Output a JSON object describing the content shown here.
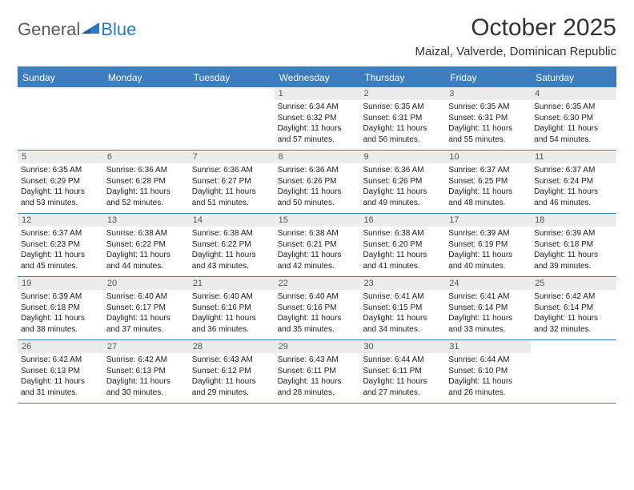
{
  "logo": {
    "general": "General",
    "blue": "Blue"
  },
  "title": "October 2025",
  "subtitle": "Maizal, Valverde, Dominican Republic",
  "colors": {
    "header_blue": "#3b7dbf",
    "day_num_bg": "#ececec",
    "text": "#222222",
    "title_text": "#333333",
    "logo_gray": "#5a5a5a",
    "logo_blue": "#2b78c2"
  },
  "dow": [
    "Sunday",
    "Monday",
    "Tuesday",
    "Wednesday",
    "Thursday",
    "Friday",
    "Saturday"
  ],
  "weeks": [
    [
      {
        "n": "",
        "sr": "",
        "ss": "",
        "dl": ""
      },
      {
        "n": "",
        "sr": "",
        "ss": "",
        "dl": ""
      },
      {
        "n": "",
        "sr": "",
        "ss": "",
        "dl": ""
      },
      {
        "n": "1",
        "sr": "Sunrise: 6:34 AM",
        "ss": "Sunset: 6:32 PM",
        "dl": "Daylight: 11 hours and 57 minutes."
      },
      {
        "n": "2",
        "sr": "Sunrise: 6:35 AM",
        "ss": "Sunset: 6:31 PM",
        "dl": "Daylight: 11 hours and 56 minutes."
      },
      {
        "n": "3",
        "sr": "Sunrise: 6:35 AM",
        "ss": "Sunset: 6:31 PM",
        "dl": "Daylight: 11 hours and 55 minutes."
      },
      {
        "n": "4",
        "sr": "Sunrise: 6:35 AM",
        "ss": "Sunset: 6:30 PM",
        "dl": "Daylight: 11 hours and 54 minutes."
      }
    ],
    [
      {
        "n": "5",
        "sr": "Sunrise: 6:35 AM",
        "ss": "Sunset: 6:29 PM",
        "dl": "Daylight: 11 hours and 53 minutes."
      },
      {
        "n": "6",
        "sr": "Sunrise: 6:36 AM",
        "ss": "Sunset: 6:28 PM",
        "dl": "Daylight: 11 hours and 52 minutes."
      },
      {
        "n": "7",
        "sr": "Sunrise: 6:36 AM",
        "ss": "Sunset: 6:27 PM",
        "dl": "Daylight: 11 hours and 51 minutes."
      },
      {
        "n": "8",
        "sr": "Sunrise: 6:36 AM",
        "ss": "Sunset: 6:26 PM",
        "dl": "Daylight: 11 hours and 50 minutes."
      },
      {
        "n": "9",
        "sr": "Sunrise: 6:36 AM",
        "ss": "Sunset: 6:26 PM",
        "dl": "Daylight: 11 hours and 49 minutes."
      },
      {
        "n": "10",
        "sr": "Sunrise: 6:37 AM",
        "ss": "Sunset: 6:25 PM",
        "dl": "Daylight: 11 hours and 48 minutes."
      },
      {
        "n": "11",
        "sr": "Sunrise: 6:37 AM",
        "ss": "Sunset: 6:24 PM",
        "dl": "Daylight: 11 hours and 46 minutes."
      }
    ],
    [
      {
        "n": "12",
        "sr": "Sunrise: 6:37 AM",
        "ss": "Sunset: 6:23 PM",
        "dl": "Daylight: 11 hours and 45 minutes."
      },
      {
        "n": "13",
        "sr": "Sunrise: 6:38 AM",
        "ss": "Sunset: 6:22 PM",
        "dl": "Daylight: 11 hours and 44 minutes."
      },
      {
        "n": "14",
        "sr": "Sunrise: 6:38 AM",
        "ss": "Sunset: 6:22 PM",
        "dl": "Daylight: 11 hours and 43 minutes."
      },
      {
        "n": "15",
        "sr": "Sunrise: 6:38 AM",
        "ss": "Sunset: 6:21 PM",
        "dl": "Daylight: 11 hours and 42 minutes."
      },
      {
        "n": "16",
        "sr": "Sunrise: 6:38 AM",
        "ss": "Sunset: 6:20 PM",
        "dl": "Daylight: 11 hours and 41 minutes."
      },
      {
        "n": "17",
        "sr": "Sunrise: 6:39 AM",
        "ss": "Sunset: 6:19 PM",
        "dl": "Daylight: 11 hours and 40 minutes."
      },
      {
        "n": "18",
        "sr": "Sunrise: 6:39 AM",
        "ss": "Sunset: 6:18 PM",
        "dl": "Daylight: 11 hours and 39 minutes."
      }
    ],
    [
      {
        "n": "19",
        "sr": "Sunrise: 6:39 AM",
        "ss": "Sunset: 6:18 PM",
        "dl": "Daylight: 11 hours and 38 minutes."
      },
      {
        "n": "20",
        "sr": "Sunrise: 6:40 AM",
        "ss": "Sunset: 6:17 PM",
        "dl": "Daylight: 11 hours and 37 minutes."
      },
      {
        "n": "21",
        "sr": "Sunrise: 6:40 AM",
        "ss": "Sunset: 6:16 PM",
        "dl": "Daylight: 11 hours and 36 minutes."
      },
      {
        "n": "22",
        "sr": "Sunrise: 6:40 AM",
        "ss": "Sunset: 6:16 PM",
        "dl": "Daylight: 11 hours and 35 minutes."
      },
      {
        "n": "23",
        "sr": "Sunrise: 6:41 AM",
        "ss": "Sunset: 6:15 PM",
        "dl": "Daylight: 11 hours and 34 minutes."
      },
      {
        "n": "24",
        "sr": "Sunrise: 6:41 AM",
        "ss": "Sunset: 6:14 PM",
        "dl": "Daylight: 11 hours and 33 minutes."
      },
      {
        "n": "25",
        "sr": "Sunrise: 6:42 AM",
        "ss": "Sunset: 6:14 PM",
        "dl": "Daylight: 11 hours and 32 minutes."
      }
    ],
    [
      {
        "n": "26",
        "sr": "Sunrise: 6:42 AM",
        "ss": "Sunset: 6:13 PM",
        "dl": "Daylight: 11 hours and 31 minutes."
      },
      {
        "n": "27",
        "sr": "Sunrise: 6:42 AM",
        "ss": "Sunset: 6:13 PM",
        "dl": "Daylight: 11 hours and 30 minutes."
      },
      {
        "n": "28",
        "sr": "Sunrise: 6:43 AM",
        "ss": "Sunset: 6:12 PM",
        "dl": "Daylight: 11 hours and 29 minutes."
      },
      {
        "n": "29",
        "sr": "Sunrise: 6:43 AM",
        "ss": "Sunset: 6:11 PM",
        "dl": "Daylight: 11 hours and 28 minutes."
      },
      {
        "n": "30",
        "sr": "Sunrise: 6:44 AM",
        "ss": "Sunset: 6:11 PM",
        "dl": "Daylight: 11 hours and 27 minutes."
      },
      {
        "n": "31",
        "sr": "Sunrise: 6:44 AM",
        "ss": "Sunset: 6:10 PM",
        "dl": "Daylight: 11 hours and 26 minutes."
      },
      {
        "n": "",
        "sr": "",
        "ss": "",
        "dl": ""
      }
    ]
  ]
}
